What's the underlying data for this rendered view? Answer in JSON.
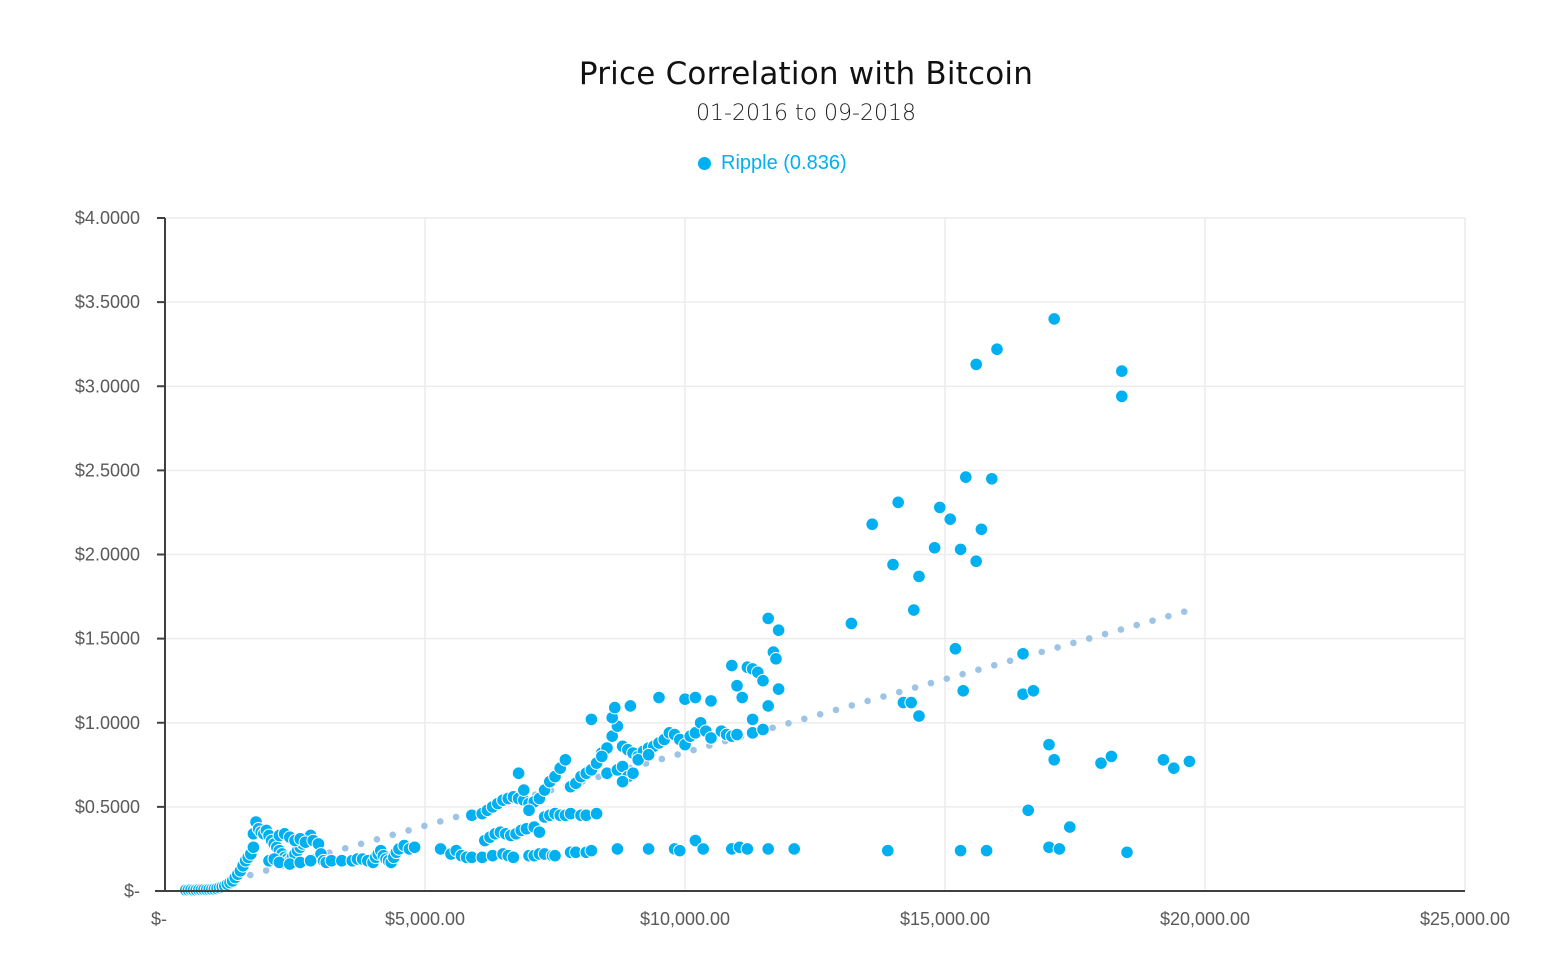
{
  "chart_data": {
    "type": "scatter",
    "title": "Price Correlation with Bitcoin",
    "subtitle": "01-2016 to 09-2018",
    "xlabel": "",
    "ylabel": "",
    "xlim": [
      0,
      25000
    ],
    "ylim": [
      0,
      4
    ],
    "grid": true,
    "legend_position": "top-center",
    "x_ticks": [
      0,
      5000,
      10000,
      15000,
      20000,
      25000
    ],
    "x_tick_labels": [
      "$-",
      "$5,000.00",
      "$10,000.00",
      "$15,000.00",
      "$20,000.00",
      "$25,000.00"
    ],
    "y_ticks": [
      0,
      0.5,
      1,
      1.5,
      2,
      2.5,
      3,
      3.5,
      4
    ],
    "y_tick_labels": [
      "$-",
      "$0.5000",
      "$1.0000",
      "$1.5000",
      "$2.0000",
      "$2.5000",
      "$3.0000",
      "$3.5000",
      "$4.0000"
    ],
    "series": [
      {
        "name": "Ripple (0.836)",
        "color": "#00b0f0",
        "points": [
          [
            400,
            0.006
          ],
          [
            450,
            0.006
          ],
          [
            500,
            0.007
          ],
          [
            550,
            0.006
          ],
          [
            600,
            0.006
          ],
          [
            650,
            0.007
          ],
          [
            700,
            0.007
          ],
          [
            750,
            0.008
          ],
          [
            800,
            0.008
          ],
          [
            850,
            0.009
          ],
          [
            900,
            0.01
          ],
          [
            950,
            0.012
          ],
          [
            1000,
            0.015
          ],
          [
            1050,
            0.02
          ],
          [
            1100,
            0.025
          ],
          [
            1150,
            0.03
          ],
          [
            1200,
            0.04
          ],
          [
            1250,
            0.05
          ],
          [
            1300,
            0.06
          ],
          [
            1350,
            0.08
          ],
          [
            1400,
            0.1
          ],
          [
            1450,
            0.12
          ],
          [
            1500,
            0.15
          ],
          [
            1550,
            0.18
          ],
          [
            1600,
            0.2
          ],
          [
            1650,
            0.22
          ],
          [
            1700,
            0.26
          ],
          [
            1700,
            0.34
          ],
          [
            1750,
            0.41
          ],
          [
            1800,
            0.37
          ],
          [
            1850,
            0.35
          ],
          [
            1900,
            0.34
          ],
          [
            1950,
            0.36
          ],
          [
            2000,
            0.33
          ],
          [
            2050,
            0.3
          ],
          [
            2100,
            0.28
          ],
          [
            2150,
            0.26
          ],
          [
            2200,
            0.24
          ],
          [
            2250,
            0.22
          ],
          [
            2300,
            0.2
          ],
          [
            2350,
            0.19
          ],
          [
            2400,
            0.18
          ],
          [
            2450,
            0.2
          ],
          [
            2500,
            0.22
          ],
          [
            2550,
            0.24
          ],
          [
            2600,
            0.26
          ],
          [
            2650,
            0.28
          ],
          [
            2700,
            0.3
          ],
          [
            2750,
            0.32
          ],
          [
            2800,
            0.33
          ],
          [
            2200,
            0.33
          ],
          [
            2300,
            0.34
          ],
          [
            2400,
            0.32
          ],
          [
            2500,
            0.3
          ],
          [
            2600,
            0.31
          ],
          [
            2700,
            0.29
          ],
          [
            2850,
            0.3
          ],
          [
            2950,
            0.28
          ],
          [
            3000,
            0.22
          ],
          [
            3050,
            0.18
          ],
          [
            3100,
            0.17
          ],
          [
            2000,
            0.18
          ],
          [
            2100,
            0.19
          ],
          [
            2200,
            0.17
          ],
          [
            2400,
            0.16
          ],
          [
            2600,
            0.17
          ],
          [
            2800,
            0.18
          ],
          [
            3200,
            0.18
          ],
          [
            3400,
            0.18
          ],
          [
            3600,
            0.18
          ],
          [
            3700,
            0.19
          ],
          [
            3800,
            0.19
          ],
          [
            3900,
            0.18
          ],
          [
            4000,
            0.17
          ],
          [
            4050,
            0.2
          ],
          [
            4100,
            0.22
          ],
          [
            4150,
            0.24
          ],
          [
            4200,
            0.21
          ],
          [
            4250,
            0.19
          ],
          [
            4300,
            0.18
          ],
          [
            4350,
            0.17
          ],
          [
            4400,
            0.2
          ],
          [
            4450,
            0.23
          ],
          [
            4500,
            0.25
          ],
          [
            4600,
            0.27
          ],
          [
            4700,
            0.25
          ],
          [
            4800,
            0.26
          ],
          [
            5300,
            0.25
          ],
          [
            5500,
            0.22
          ],
          [
            5600,
            0.24
          ],
          [
            5700,
            0.21
          ],
          [
            5800,
            0.2
          ],
          [
            5900,
            0.2
          ],
          [
            6100,
            0.2
          ],
          [
            6300,
            0.21
          ],
          [
            6500,
            0.22
          ],
          [
            6600,
            0.21
          ],
          [
            6700,
            0.2
          ],
          [
            7000,
            0.21
          ],
          [
            7100,
            0.21
          ],
          [
            7200,
            0.22
          ],
          [
            7300,
            0.22
          ],
          [
            7450,
            0.21
          ],
          [
            7500,
            0.21
          ],
          [
            7800,
            0.23
          ],
          [
            7900,
            0.23
          ],
          [
            8100,
            0.23
          ],
          [
            8200,
            0.24
          ],
          [
            8700,
            0.25
          ],
          [
            9300,
            0.25
          ],
          [
            9800,
            0.25
          ],
          [
            9900,
            0.24
          ],
          [
            10200,
            0.3
          ],
          [
            10350,
            0.25
          ],
          [
            10900,
            0.25
          ],
          [
            11050,
            0.26
          ],
          [
            11200,
            0.25
          ],
          [
            11600,
            0.25
          ],
          [
            12100,
            0.25
          ],
          [
            5900,
            0.45
          ],
          [
            6100,
            0.46
          ],
          [
            6200,
            0.48
          ],
          [
            6300,
            0.5
          ],
          [
            6400,
            0.52
          ],
          [
            6500,
            0.54
          ],
          [
            6600,
            0.55
          ],
          [
            6700,
            0.56
          ],
          [
            6800,
            0.55
          ],
          [
            6900,
            0.54
          ],
          [
            7000,
            0.52
          ],
          [
            7100,
            0.53
          ],
          [
            6150,
            0.3
          ],
          [
            6250,
            0.32
          ],
          [
            6350,
            0.34
          ],
          [
            6450,
            0.35
          ],
          [
            6550,
            0.34
          ],
          [
            6650,
            0.33
          ],
          [
            6750,
            0.34
          ],
          [
            6850,
            0.36
          ],
          [
            6950,
            0.37
          ],
          [
            7100,
            0.38
          ],
          [
            7200,
            0.35
          ],
          [
            7300,
            0.44
          ],
          [
            7400,
            0.45
          ],
          [
            7500,
            0.46
          ],
          [
            7600,
            0.45
          ],
          [
            7700,
            0.45
          ],
          [
            7800,
            0.46
          ],
          [
            8000,
            0.45
          ],
          [
            8100,
            0.45
          ],
          [
            8300,
            0.46
          ],
          [
            6800,
            0.7
          ],
          [
            6900,
            0.6
          ],
          [
            7000,
            0.48
          ],
          [
            7200,
            0.55
          ],
          [
            7300,
            0.6
          ],
          [
            7400,
            0.65
          ],
          [
            7500,
            0.68
          ],
          [
            7600,
            0.73
          ],
          [
            7700,
            0.78
          ],
          [
            7800,
            0.62
          ],
          [
            7900,
            0.64
          ],
          [
            8000,
            0.68
          ],
          [
            8100,
            0.7
          ],
          [
            8200,
            0.72
          ],
          [
            8300,
            0.76
          ],
          [
            8400,
            0.82
          ],
          [
            8500,
            0.85
          ],
          [
            8600,
            0.92
          ],
          [
            8700,
            0.98
          ],
          [
            8800,
            0.86
          ],
          [
            8900,
            0.84
          ],
          [
            9000,
            0.82
          ],
          [
            9100,
            0.8
          ],
          [
            9200,
            0.83
          ],
          [
            9300,
            0.85
          ],
          [
            9400,
            0.86
          ],
          [
            9500,
            0.88
          ],
          [
            9600,
            0.9
          ],
          [
            9700,
            0.94
          ],
          [
            9800,
            0.93
          ],
          [
            9900,
            0.9
          ],
          [
            10000,
            0.87
          ],
          [
            10100,
            0.92
          ],
          [
            10200,
            0.94
          ],
          [
            10300,
            1.0
          ],
          [
            10400,
            0.95
          ],
          [
            10500,
            0.91
          ],
          [
            10700,
            0.95
          ],
          [
            10800,
            0.93
          ],
          [
            10900,
            0.92
          ],
          [
            11000,
            0.93
          ],
          [
            11300,
            0.94
          ],
          [
            11500,
            0.96
          ],
          [
            8600,
            1.03
          ],
          [
            8650,
            1.09
          ],
          [
            8950,
            1.1
          ],
          [
            9500,
            1.15
          ],
          [
            10000,
            1.14
          ],
          [
            10200,
            1.15
          ],
          [
            10500,
            1.13
          ],
          [
            11000,
            1.22
          ],
          [
            11100,
            1.15
          ],
          [
            11200,
            1.33
          ],
          [
            11300,
            1.32
          ],
          [
            11400,
            1.3
          ],
          [
            11500,
            1.25
          ],
          [
            11600,
            1.1
          ],
          [
            11700,
            1.42
          ],
          [
            11750,
            1.38
          ],
          [
            11800,
            1.2
          ],
          [
            11300,
            1.02
          ],
          [
            11600,
            1.62
          ],
          [
            11800,
            1.55
          ],
          [
            10900,
            1.34
          ],
          [
            8200,
            1.02
          ],
          [
            8400,
            0.8
          ],
          [
            8500,
            0.7
          ],
          [
            8700,
            0.72
          ],
          [
            8800,
            0.74
          ],
          [
            8900,
            0.68
          ],
          [
            9000,
            0.7
          ],
          [
            9100,
            0.78
          ],
          [
            9300,
            0.81
          ],
          [
            8800,
            0.65
          ],
          [
            13200,
            1.59
          ],
          [
            13600,
            2.18
          ],
          [
            14000,
            1.94
          ],
          [
            14100,
            2.31
          ],
          [
            14200,
            1.12
          ],
          [
            14350,
            1.12
          ],
          [
            14400,
            1.67
          ],
          [
            14500,
            1.87
          ],
          [
            14500,
            1.04
          ],
          [
            14800,
            2.04
          ],
          [
            14900,
            2.28
          ],
          [
            15100,
            2.21
          ],
          [
            15200,
            1.44
          ],
          [
            15300,
            2.03
          ],
          [
            15350,
            1.19
          ],
          [
            15400,
            2.46
          ],
          [
            15600,
            1.96
          ],
          [
            15700,
            2.15
          ],
          [
            15600,
            3.13
          ],
          [
            15900,
            2.45
          ],
          [
            16000,
            3.22
          ],
          [
            16500,
            1.41
          ],
          [
            16500,
            1.17
          ],
          [
            16700,
            1.19
          ],
          [
            16600,
            0.48
          ],
          [
            17000,
            0.87
          ],
          [
            17100,
            0.78
          ],
          [
            17400,
            0.38
          ],
          [
            17000,
            0.26
          ],
          [
            17200,
            0.25
          ],
          [
            17100,
            3.4
          ],
          [
            18000,
            0.76
          ],
          [
            18200,
            0.8
          ],
          [
            18400,
            3.09
          ],
          [
            18400,
            2.94
          ],
          [
            18500,
            0.23
          ],
          [
            19200,
            0.78
          ],
          [
            19400,
            0.73
          ],
          [
            19700,
            0.77
          ],
          [
            13900,
            0.24
          ],
          [
            15300,
            0.24
          ],
          [
            15800,
            0.24
          ]
        ]
      }
    ],
    "trendline": {
      "type": "linear",
      "style": "dotted",
      "color": "#9dc3e6",
      "x_range": [
        1640,
        19600
      ],
      "y_range": [
        0.095,
        1.66
      ]
    }
  },
  "legend": {
    "label": "Ripple (0.836)"
  }
}
